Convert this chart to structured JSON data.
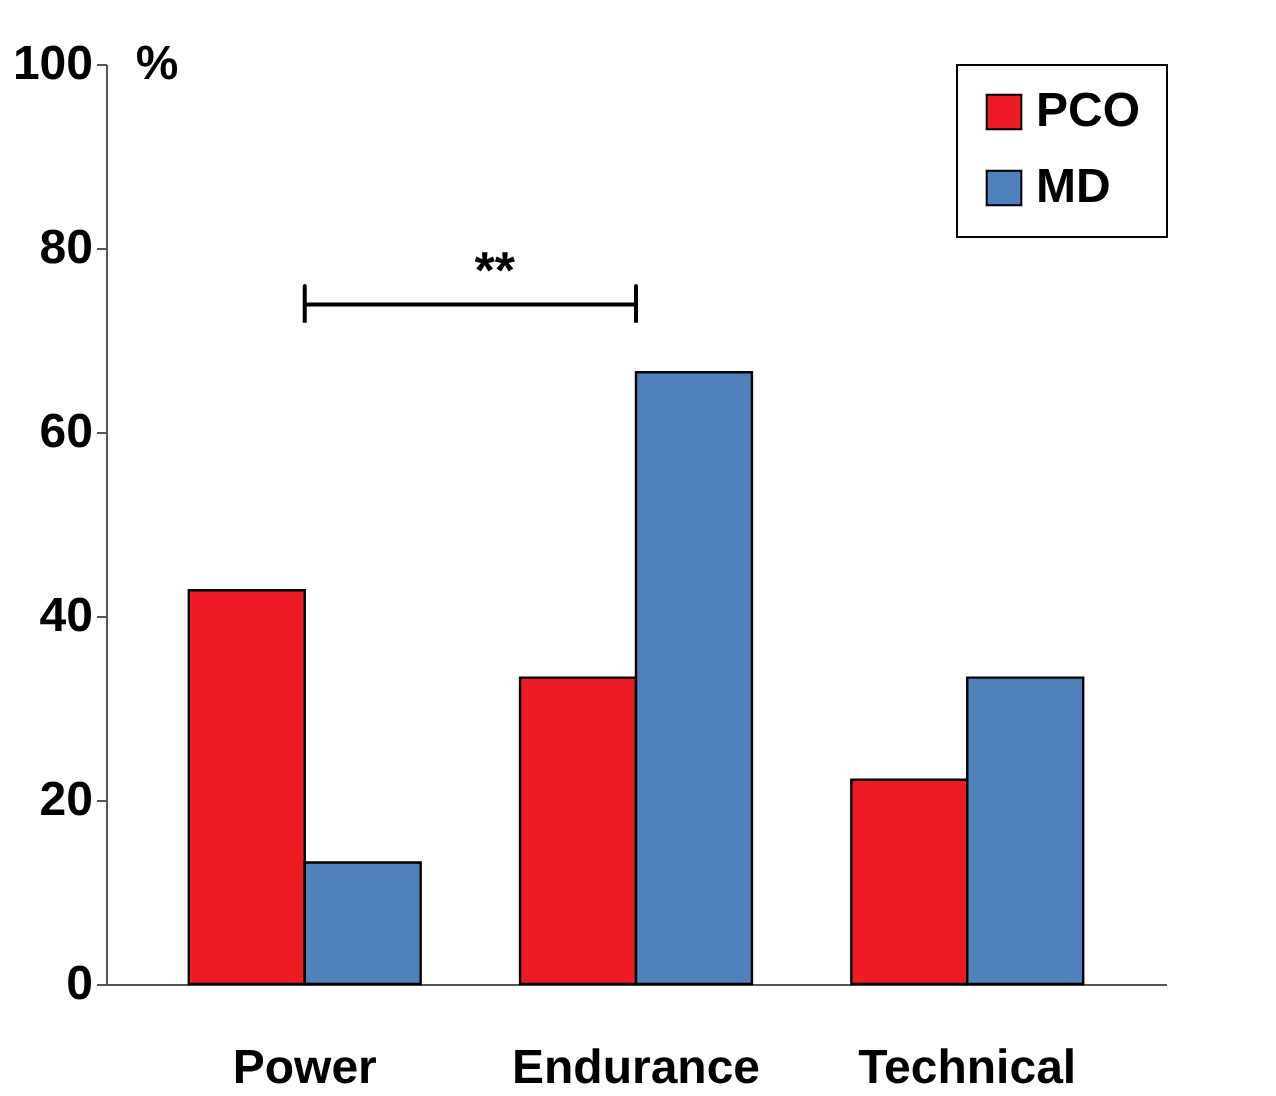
{
  "chart_data": {
    "type": "bar",
    "ylabel": "%",
    "categories": [
      "Power",
      "Endurance",
      "Technical"
    ],
    "series": [
      {
        "name": "PCO",
        "color": "#ed1c24",
        "values": [
          42.8,
          33.3,
          22.2
        ]
      },
      {
        "name": "MD",
        "color": "#4f81bd",
        "values": [
          13.2,
          66.5,
          33.3
        ]
      }
    ],
    "ylim": [
      0,
      100
    ],
    "yticks": [
      0,
      20,
      40,
      60,
      80,
      100
    ],
    "grid": false,
    "legend": "top right",
    "annotations": [
      "**"
    ]
  }
}
